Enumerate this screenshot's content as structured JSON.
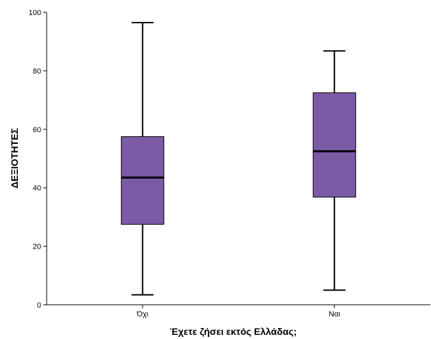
{
  "chart_data": {
    "type": "boxplot",
    "title": "",
    "xlabel": "Έχετε ζήσει εκτός Ελλάδας;",
    "ylabel": "ΔΕΞΙΟΤΗΤΕΣ",
    "ylim": [
      0,
      100
    ],
    "yticks": [
      0,
      20,
      40,
      60,
      80,
      100
    ],
    "categories": [
      "Όχι",
      "Ναι"
    ],
    "boxes": [
      {
        "category": "Όχι",
        "min": 3.4,
        "q1": 27.5,
        "median": 43.5,
        "q3": 57.5,
        "max": 96.5
      },
      {
        "category": "Ναι",
        "min": 5.0,
        "q1": 36.8,
        "median": 52.5,
        "q3": 72.5,
        "max": 86.8
      }
    ],
    "grid": false,
    "box_color": "#7B5BA6",
    "box_border_color": "#000000"
  }
}
